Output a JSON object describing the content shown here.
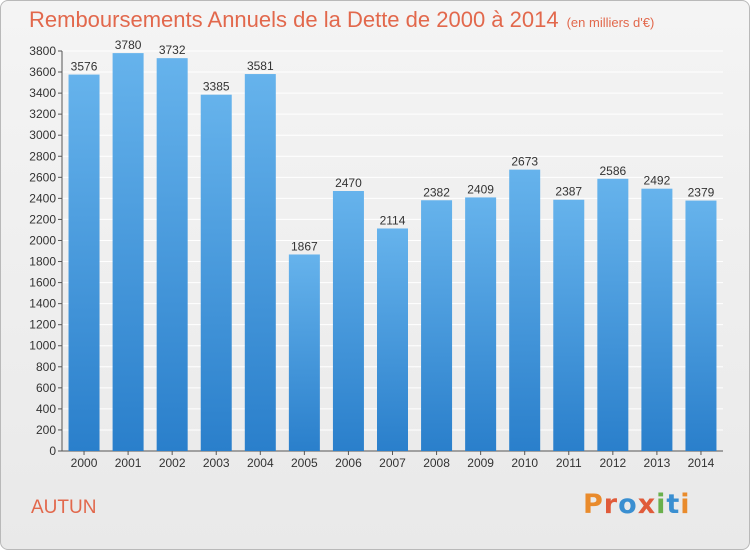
{
  "header": {
    "title": "Remboursements Annuels de la Dette de 2000 à 2014",
    "subtitle": "(en milliers d'€)"
  },
  "footer": {
    "city": "AUTUN",
    "logo": "Proxiti"
  },
  "colors": {
    "title": "#e2684c",
    "bar_top": "#66b3ec",
    "bar_bottom": "#2a7fcb",
    "grid": "#ffffff",
    "logo_letters": [
      "#e98b2c",
      "#e05b3a",
      "#3a8fd1",
      "#e05b3a",
      "#6ab04c",
      "#3a8fd1",
      "#e98b2c"
    ]
  },
  "chart_data": {
    "type": "bar",
    "title": "Remboursements Annuels de la Dette de 2000 à 2014",
    "subtitle": "(en milliers d'€)",
    "xlabel": "",
    "ylabel": "",
    "categories": [
      "2000",
      "2001",
      "2002",
      "2003",
      "2004",
      "2005",
      "2006",
      "2007",
      "2008",
      "2009",
      "2010",
      "2011",
      "2012",
      "2013",
      "2014"
    ],
    "values": [
      3576,
      3780,
      3732,
      3385,
      3581,
      1867,
      2470,
      2114,
      2382,
      2409,
      2673,
      2387,
      2586,
      2492,
      2379
    ],
    "ylim": [
      0,
      3800
    ],
    "yticks": [
      0,
      200,
      400,
      600,
      800,
      1000,
      1200,
      1400,
      1600,
      1800,
      2000,
      2200,
      2400,
      2600,
      2800,
      3000,
      3200,
      3400,
      3600,
      3800
    ],
    "grid": true,
    "legend": "none"
  }
}
